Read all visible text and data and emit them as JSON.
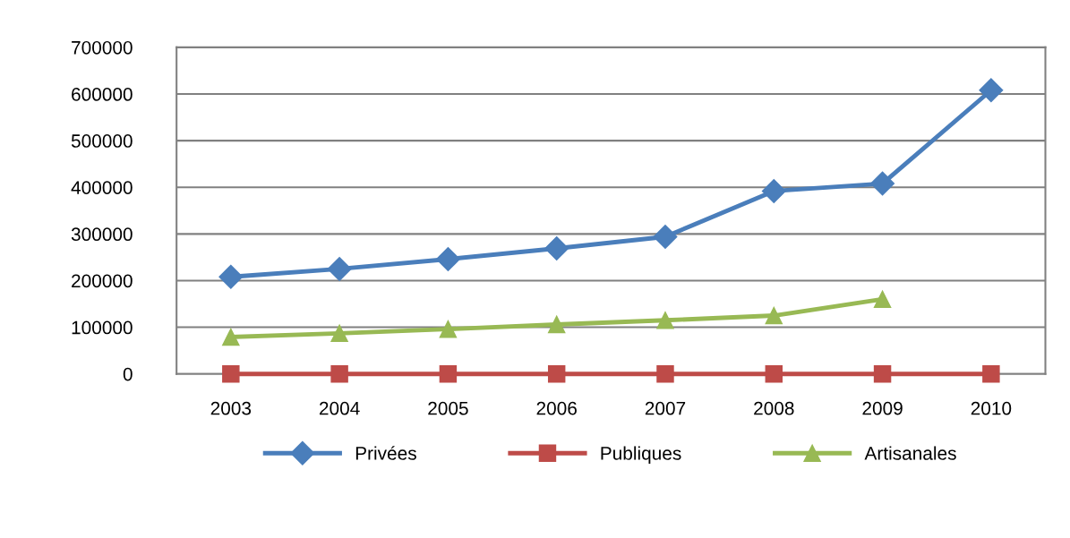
{
  "chart_data": {
    "type": "line",
    "categories": [
      "2003",
      "2004",
      "2005",
      "2006",
      "2007",
      "2008",
      "2009",
      "2010"
    ],
    "series": [
      {
        "name": "Privées",
        "color": "#4a7ebb",
        "marker": "diamond",
        "values": [
          208000,
          225000,
          246000,
          269000,
          294000,
          392000,
          408000,
          608000
        ]
      },
      {
        "name": "Publiques",
        "color": "#be4b48",
        "marker": "square",
        "values": [
          0,
          0,
          0,
          0,
          0,
          0,
          0,
          0
        ]
      },
      {
        "name": "Artisanales",
        "color": "#98b954",
        "marker": "triangle",
        "values": [
          79000,
          87000,
          96000,
          106000,
          115000,
          125000,
          160000,
          null
        ]
      }
    ],
    "ylim": [
      0,
      700000
    ],
    "yticks": [
      0,
      100000,
      200000,
      300000,
      400000,
      500000,
      600000,
      700000
    ],
    "grid": "y",
    "legend": "bottom",
    "line_style": "solid"
  }
}
